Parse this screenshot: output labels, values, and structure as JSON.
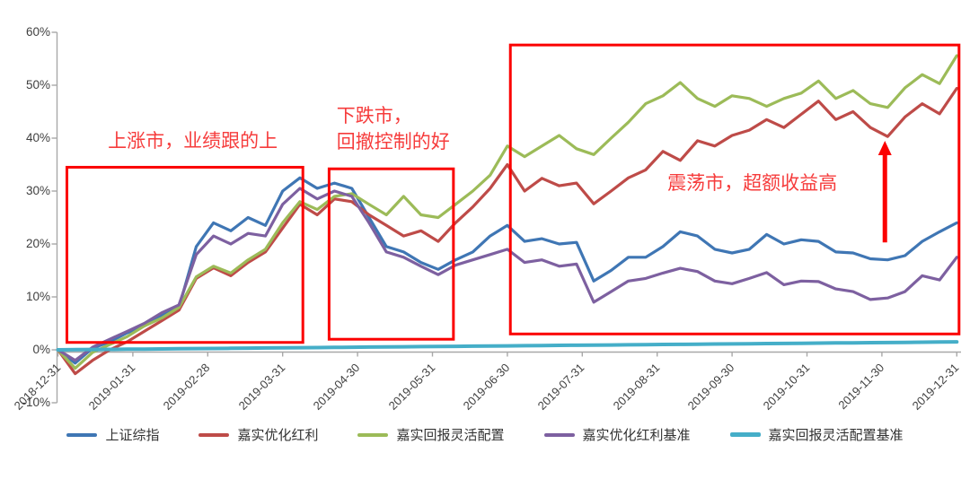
{
  "chart_data": {
    "type": "line",
    "title": "",
    "xlabel": "",
    "ylabel": "",
    "grid": false,
    "legend_position": "bottom",
    "ylim": [
      -10,
      60
    ],
    "y_ticks": [
      60,
      50,
      40,
      30,
      20,
      10,
      0,
      -10
    ],
    "y_tick_labels": [
      "60%",
      "50%",
      "40%",
      "30%",
      "20%",
      "10%",
      "0%",
      "-10%"
    ],
    "x_tick_labels": [
      "2018-12-31",
      "2019-01-31",
      "2019-02-28",
      "2019-03-31",
      "2019-04-30",
      "2019-05-31",
      "2019-06-30",
      "2019-07-31",
      "2019-08-31",
      "2019-09-30",
      "2019-10-31",
      "2019-11-30",
      "2019-12-31"
    ],
    "unit": "percent",
    "sampling": "weekly",
    "series": [
      {
        "name": "上证综指",
        "color": "#3F76B4",
        "width": 3.2,
        "values": [
          0,
          -2.5,
          0.3,
          1.5,
          3.2,
          4.5,
          6.5,
          8,
          19.5,
          24,
          22.5,
          25,
          23.5,
          30,
          32.5,
          30.5,
          31.5,
          30.5,
          25,
          19.5,
          18.5,
          16.5,
          15.2,
          17,
          18.5,
          21.5,
          23.5,
          20.5,
          21,
          20,
          20.3,
          13,
          15,
          17.5,
          17.5,
          19.5,
          22.3,
          21.5,
          19,
          18.3,
          19,
          21.8,
          20,
          20.8,
          20.5,
          18.5,
          18.3,
          17.2,
          17,
          17.8,
          20.5,
          22.3,
          24
        ]
      },
      {
        "name": "嘉实优化红利",
        "color": "#BE4B48",
        "width": 3.2,
        "values": [
          0,
          -4.5,
          -2,
          0,
          1.5,
          3.5,
          5.5,
          7.5,
          13.5,
          15.5,
          14,
          16.5,
          18.5,
          23,
          27.5,
          25.5,
          28.5,
          28,
          25.5,
          23.5,
          21.5,
          22.5,
          20.5,
          24,
          27,
          30.5,
          35,
          30,
          32.4,
          31,
          31.5,
          27.6,
          30,
          32.5,
          34,
          37.5,
          35.8,
          39.5,
          38.5,
          40.5,
          41.5,
          43.5,
          42,
          44.5,
          47,
          43.5,
          45,
          42,
          40.3,
          44,
          46.5,
          44.6,
          49.4
        ]
      },
      {
        "name": "嘉实回报灵活配置",
        "color": "#9CBB58",
        "width": 3.2,
        "values": [
          0,
          -3.5,
          -0.5,
          1,
          2.5,
          4.5,
          6,
          8,
          13.8,
          15.8,
          14.5,
          17,
          19,
          24,
          28,
          26.5,
          29,
          29.5,
          27.5,
          25.5,
          29,
          25.5,
          25,
          27.5,
          30,
          33,
          38.5,
          36.5,
          38.5,
          40.5,
          38,
          36.9,
          40,
          43,
          46.5,
          48,
          50.5,
          47.5,
          46,
          48,
          47.5,
          46,
          47.5,
          48.5,
          50.8,
          47.5,
          49,
          46.5,
          45.8,
          49.5,
          52,
          50.3,
          55.6
        ]
      },
      {
        "name": "嘉实优化红利基准",
        "color": "#7D60A0",
        "width": 3.2,
        "values": [
          0,
          -2,
          0.5,
          2,
          3.5,
          5,
          7,
          8.5,
          18,
          21.5,
          20,
          22,
          21.5,
          27.5,
          30.5,
          28.5,
          30,
          29,
          24,
          18.5,
          17.5,
          15.8,
          14.2,
          16,
          17,
          18,
          19,
          16.5,
          17,
          15.8,
          16.2,
          9,
          11,
          13,
          13.5,
          14.5,
          15.4,
          14.8,
          13,
          12.5,
          13.5,
          14.6,
          12.3,
          13,
          12.9,
          11.5,
          11,
          9.5,
          9.8,
          11,
          14,
          13.2,
          17.5
        ]
      },
      {
        "name": "嘉实回报灵活配置基准",
        "color": "#45AEC8",
        "width": 4,
        "values": [
          0,
          0.03,
          0.06,
          0.09,
          0.12,
          0.14,
          0.17,
          0.2,
          0.23,
          0.26,
          0.29,
          0.32,
          0.35,
          0.38,
          0.4,
          0.43,
          0.46,
          0.49,
          0.52,
          0.55,
          0.58,
          0.61,
          0.63,
          0.66,
          0.69,
          0.72,
          0.75,
          0.78,
          0.81,
          0.84,
          0.87,
          0.89,
          0.92,
          0.95,
          0.98,
          1.01,
          1.04,
          1.07,
          1.1,
          1.12,
          1.15,
          1.18,
          1.21,
          1.24,
          1.27,
          1.3,
          1.33,
          1.36,
          1.38,
          1.41,
          1.44,
          1.47,
          1.5
        ]
      }
    ],
    "annotations": {
      "color": "#FB0000",
      "boxes": [
        {
          "x0": 0.12,
          "x1": 3.27,
          "y0": 1.4,
          "y1": 34.5
        },
        {
          "x0": 3.62,
          "x1": 5.28,
          "y0": 2.0,
          "y1": 34.2
        },
        {
          "x0": 6.04,
          "x1": 12.03,
          "y0": 3.0,
          "y1": 57.6
        }
      ],
      "labels": [
        {
          "lines": [
            "上涨市，业绩跟的上"
          ],
          "x": 1.8,
          "y": 39.3,
          "align": "center"
        },
        {
          "lines": [
            "下跌市，",
            "回撤控制的好"
          ],
          "x": 3.72,
          "y": 44.0,
          "align": "left"
        },
        {
          "lines": [
            "震荡市，超额收益高"
          ],
          "x": 9.27,
          "y": 31.4,
          "align": "center"
        }
      ],
      "arrow": {
        "x": 11.04,
        "y_from": 20.3,
        "y_to": 39.5
      }
    },
    "axis_color": "#a8a8a8",
    "tick_label_color": "#3f3f3f"
  }
}
